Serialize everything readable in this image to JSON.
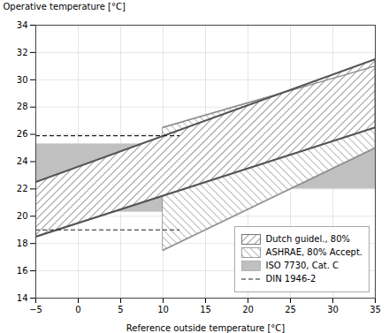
{
  "chart_data": {
    "type": "area",
    "xlabel": "Reference outside temperature [°C]",
    "ylabel": "Operative temperature [°C]",
    "xlim": [
      -5,
      35
    ],
    "ylim": [
      14,
      34
    ],
    "xticks": [
      -5,
      0,
      5,
      10,
      15,
      20,
      25,
      30,
      35
    ],
    "yticks": [
      14,
      16,
      18,
      20,
      22,
      24,
      26,
      28,
      30,
      32,
      34
    ],
    "grid": true,
    "legend": "lower right",
    "series": [
      {
        "name": "Dutch guidel., 80%",
        "type": "band",
        "color": "#555555",
        "x": [
          -5,
          35
        ],
        "upper": [
          22.5,
          31.5
        ],
        "lower": [
          18.5,
          26.5
        ]
      },
      {
        "name": "ASHRAE, 80% Accept.",
        "type": "band",
        "color": "#888888",
        "x": [
          10,
          35
        ],
        "upper": [
          26.5,
          31.0
        ],
        "lower": [
          17.5,
          25.0
        ]
      },
      {
        "name": "ISO 7730, Cat. C",
        "type": "rect",
        "color": "#c0c0c0",
        "x1": [
          -5,
          15
        ],
        "x2": [
          10,
          35
        ],
        "y1": [
          20.3,
          22.0
        ],
        "y2": [
          25.3,
          26.0
        ]
      },
      {
        "name": "DIN 1946-2",
        "type": "hline",
        "color": "#222222",
        "line_style": "dashed",
        "y": [
          25.9,
          19.0
        ],
        "x1": -5,
        "x2": 12
      }
    ]
  }
}
